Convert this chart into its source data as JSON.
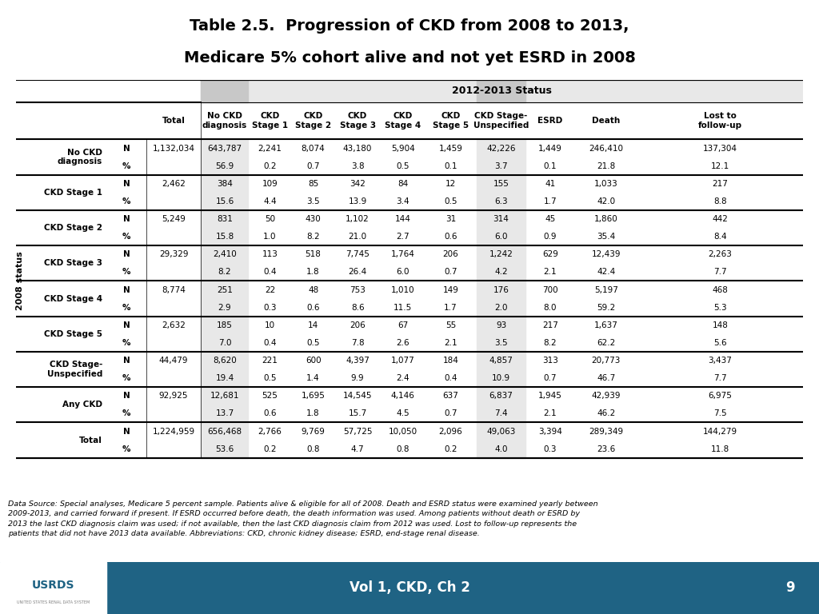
{
  "title_line1": "Table 2.5.  Progression of CKD from 2008 to 2013,",
  "title_line2": "Medicare 5% cohort alive and not yet ESRD in 2008",
  "col_header_top": "2012-2013 Status",
  "col_headers": [
    "",
    "",
    "Total",
    "No CKD\ndiagnosis",
    "CKD\nStage 1",
    "CKD\nStage 2",
    "CKD\nStage 3",
    "CKD\nStage 4",
    "CKD\nStage 5",
    "CKD Stage-\nUnspecified",
    "ESRD",
    "Death",
    "Lost to\nfollow-up"
  ],
  "row_label_left": "2008 status",
  "rows": [
    {
      "label": "No CKD\ndiagnosis",
      "N_label": "N",
      "pct_label": "%",
      "N_vals": [
        "1,132,034",
        "643,787",
        "2,241",
        "8,074",
        "43,180",
        "5,904",
        "1,459",
        "42,226",
        "1,449",
        "246,410",
        "137,304"
      ],
      "pct_vals": [
        "",
        "56.9",
        "0.2",
        "0.7",
        "3.8",
        "0.5",
        "0.1",
        "3.7",
        "0.1",
        "21.8",
        "12.1"
      ]
    },
    {
      "label": "CKD Stage 1",
      "N_label": "N",
      "pct_label": "%",
      "N_vals": [
        "2,462",
        "384",
        "109",
        "85",
        "342",
        "84",
        "12",
        "155",
        "41",
        "1,033",
        "217"
      ],
      "pct_vals": [
        "",
        "15.6",
        "4.4",
        "3.5",
        "13.9",
        "3.4",
        "0.5",
        "6.3",
        "1.7",
        "42.0",
        "8.8"
      ]
    },
    {
      "label": "CKD Stage 2",
      "N_label": "N",
      "pct_label": "%",
      "N_vals": [
        "5,249",
        "831",
        "50",
        "430",
        "1,102",
        "144",
        "31",
        "314",
        "45",
        "1,860",
        "442"
      ],
      "pct_vals": [
        "",
        "15.8",
        "1.0",
        "8.2",
        "21.0",
        "2.7",
        "0.6",
        "6.0",
        "0.9",
        "35.4",
        "8.4"
      ]
    },
    {
      "label": "CKD Stage 3",
      "N_label": "N",
      "pct_label": "%",
      "N_vals": [
        "29,329",
        "2,410",
        "113",
        "518",
        "7,745",
        "1,764",
        "206",
        "1,242",
        "629",
        "12,439",
        "2,263"
      ],
      "pct_vals": [
        "",
        "8.2",
        "0.4",
        "1.8",
        "26.4",
        "6.0",
        "0.7",
        "4.2",
        "2.1",
        "42.4",
        "7.7"
      ]
    },
    {
      "label": "CKD Stage 4",
      "N_label": "N",
      "pct_label": "%",
      "N_vals": [
        "8,774",
        "251",
        "22",
        "48",
        "753",
        "1,010",
        "149",
        "176",
        "700",
        "5,197",
        "468"
      ],
      "pct_vals": [
        "",
        "2.9",
        "0.3",
        "0.6",
        "8.6",
        "11.5",
        "1.7",
        "2.0",
        "8.0",
        "59.2",
        "5.3"
      ]
    },
    {
      "label": "CKD Stage 5",
      "N_label": "N",
      "pct_label": "%",
      "N_vals": [
        "2,632",
        "185",
        "10",
        "14",
        "206",
        "67",
        "55",
        "93",
        "217",
        "1,637",
        "148"
      ],
      "pct_vals": [
        "",
        "7.0",
        "0.4",
        "0.5",
        "7.8",
        "2.6",
        "2.1",
        "3.5",
        "8.2",
        "62.2",
        "5.6"
      ]
    },
    {
      "label": "CKD Stage-\nUnspecified",
      "N_label": "N",
      "pct_label": "%",
      "N_vals": [
        "44,479",
        "8,620",
        "221",
        "600",
        "4,397",
        "1,077",
        "184",
        "4,857",
        "313",
        "20,773",
        "3,437"
      ],
      "pct_vals": [
        "",
        "19.4",
        "0.5",
        "1.4",
        "9.9",
        "2.4",
        "0.4",
        "10.9",
        "0.7",
        "46.7",
        "7.7"
      ]
    },
    {
      "label": "Any CKD",
      "N_label": "N",
      "pct_label": "%",
      "N_vals": [
        "92,925",
        "12,681",
        "525",
        "1,695",
        "14,545",
        "4,146",
        "637",
        "6,837",
        "1,945",
        "42,939",
        "6,975"
      ],
      "pct_vals": [
        "",
        "13.7",
        "0.6",
        "1.8",
        "15.7",
        "4.5",
        "0.7",
        "7.4",
        "2.1",
        "46.2",
        "7.5"
      ]
    },
    {
      "label": "Total",
      "N_label": "N",
      "pct_label": "%",
      "N_vals": [
        "1,224,959",
        "656,468",
        "2,766",
        "9,769",
        "57,725",
        "10,050",
        "2,096",
        "49,063",
        "3,394",
        "289,349",
        "144,279"
      ],
      "pct_vals": [
        "",
        "53.6",
        "0.2",
        "0.8",
        "4.7",
        "0.8",
        "0.2",
        "4.0",
        "0.3",
        "23.6",
        "11.8"
      ]
    }
  ],
  "footnote": "Data Source: Special analyses, Medicare 5 percent sample. Patients alive & eligible for all of 2008. Death and ESRD status were examined yearly between\n2009-2013, and carried forward if present. If ESRD occurred before death, the death information was used. Among patients without death or ESRD by\n2013 the last CKD diagnosis claim was used; if not available, then the last CKD diagnosis claim from 2012 was used. Lost to follow-up represents the\npatients that did not have 2013 data available. Abbreviations: CKD, chronic kidney disease; ESRD, end-stage renal disease.",
  "footer_text": "Vol 1, CKD, Ch 2",
  "footer_page": "9",
  "header_bg": "#d9d9d9",
  "footer_bg": "#1f6384",
  "shaded_cols": [
    3,
    9
  ],
  "bg_color": "#ffffff",
  "text_color": "#000000",
  "title_color": "#000000"
}
